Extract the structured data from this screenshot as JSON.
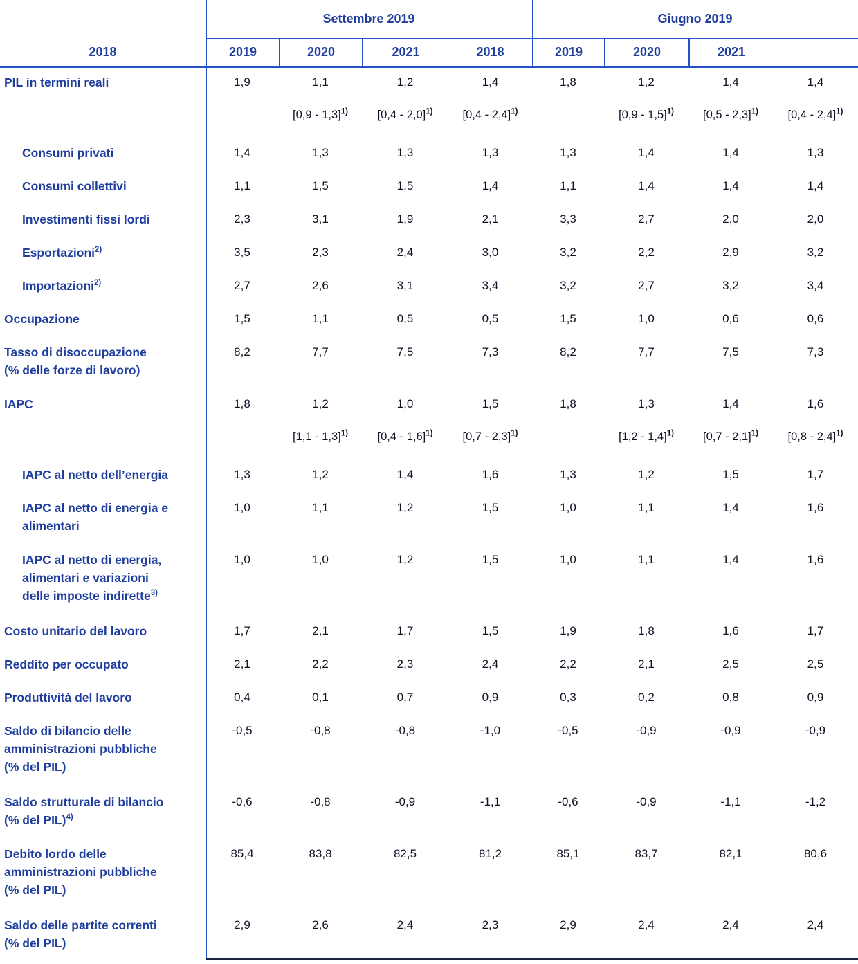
{
  "table": {
    "column_groups": [
      {
        "label": "Settembre 2019",
        "years": [
          "2018",
          "2019",
          "2020",
          "2021"
        ]
      },
      {
        "label": "Giugno 2019",
        "years": [
          "2018",
          "2019",
          "2020",
          "2021"
        ]
      }
    ],
    "range_footnote_mark": "1)",
    "rows": [
      {
        "lines": [
          {
            "text": "PIL in termini reali"
          }
        ],
        "indent": false,
        "values": [
          "1,9",
          "1,1",
          "1,2",
          "1,4",
          "1,8",
          "1,2",
          "1,4",
          "1,4"
        ],
        "ranges": [
          "",
          "[0,9 - 1,3]",
          "[0,4 - 2,0]",
          "[0,4 - 2,4]",
          "",
          "[0,9 - 1,5]",
          "[0,5 - 2,3]",
          "[0,4 - 2,4]"
        ]
      },
      {
        "lines": [
          {
            "text": "Consumi privati"
          }
        ],
        "indent": true,
        "values": [
          "1,4",
          "1,3",
          "1,3",
          "1,3",
          "1,3",
          "1,4",
          "1,4",
          "1,3"
        ]
      },
      {
        "lines": [
          {
            "text": "Consumi collettivi"
          }
        ],
        "indent": true,
        "values": [
          "1,1",
          "1,5",
          "1,5",
          "1,4",
          "1,1",
          "1,4",
          "1,4",
          "1,4"
        ]
      },
      {
        "lines": [
          {
            "text": "Investimenti fissi lordi"
          }
        ],
        "indent": true,
        "values": [
          "2,3",
          "3,1",
          "1,9",
          "2,1",
          "3,3",
          "2,7",
          "2,0",
          "2,0"
        ]
      },
      {
        "lines": [
          {
            "text": "Esportazioni",
            "sup": "2)"
          }
        ],
        "indent": true,
        "values": [
          "3,5",
          "2,3",
          "2,4",
          "3,0",
          "3,2",
          "2,2",
          "2,9",
          "3,2"
        ]
      },
      {
        "lines": [
          {
            "text": "Importazioni",
            "sup": "2)"
          }
        ],
        "indent": true,
        "values": [
          "2,7",
          "2,6",
          "3,1",
          "3,4",
          "3,2",
          "2,7",
          "3,2",
          "3,4"
        ]
      },
      {
        "lines": [
          {
            "text": "Occupazione"
          }
        ],
        "indent": false,
        "values": [
          "1,5",
          "1,1",
          "0,5",
          "0,5",
          "1,5",
          "1,0",
          "0,6",
          "0,6"
        ]
      },
      {
        "lines": [
          {
            "text": "Tasso di disoccupazione"
          },
          {
            "text": "(% delle forze di lavoro)"
          }
        ],
        "indent": false,
        "values": [
          "8,2",
          "7,7",
          "7,5",
          "7,3",
          "8,2",
          "7,7",
          "7,5",
          "7,3"
        ]
      },
      {
        "lines": [
          {
            "text": "IAPC"
          }
        ],
        "indent": false,
        "values": [
          "1,8",
          "1,2",
          "1,0",
          "1,5",
          "1,8",
          "1,3",
          "1,4",
          "1,6"
        ],
        "ranges": [
          "",
          "[1,1 - 1,3]",
          "[0,4 - 1,6]",
          "[0,7 - 2,3]",
          "",
          "[1,2 - 1,4]",
          "[0,7 - 2,1]",
          "[0,8 - 2,4]"
        ]
      },
      {
        "lines": [
          {
            "text": "IAPC al netto dell’energia"
          }
        ],
        "indent": true,
        "values": [
          "1,3",
          "1,2",
          "1,4",
          "1,6",
          "1,3",
          "1,2",
          "1,5",
          "1,7"
        ]
      },
      {
        "lines": [
          {
            "text": "IAPC al netto di energia e"
          },
          {
            "text": "alimentari"
          }
        ],
        "indent": true,
        "values": [
          "1,0",
          "1,1",
          "1,2",
          "1,5",
          "1,0",
          "1,1",
          "1,4",
          "1,6"
        ]
      },
      {
        "lines": [
          {
            "text": "IAPC al netto di energia,"
          },
          {
            "text": "alimentari e variazioni"
          },
          {
            "text": "delle imposte indirette",
            "sup": "3)"
          }
        ],
        "indent": true,
        "values": [
          "1,0",
          "1,0",
          "1,2",
          "1,5",
          "1,0",
          "1,1",
          "1,4",
          "1,6"
        ]
      },
      {
        "lines": [
          {
            "text": "Costo unitario del lavoro"
          }
        ],
        "indent": false,
        "values": [
          "1,7",
          "2,1",
          "1,7",
          "1,5",
          "1,9",
          "1,8",
          "1,6",
          "1,7"
        ]
      },
      {
        "lines": [
          {
            "text": "Reddito per occupato"
          }
        ],
        "indent": false,
        "values": [
          "2,1",
          "2,2",
          "2,3",
          "2,4",
          "2,2",
          "2,1",
          "2,5",
          "2,5"
        ]
      },
      {
        "lines": [
          {
            "text": "Produttività del lavoro"
          }
        ],
        "indent": false,
        "values": [
          "0,4",
          "0,1",
          "0,7",
          "0,9",
          "0,3",
          "0,2",
          "0,8",
          "0,9"
        ]
      },
      {
        "lines": [
          {
            "text": "Saldo di bilancio delle"
          },
          {
            "text": "amministrazioni pubbliche"
          },
          {
            "text": "(% del PIL)"
          }
        ],
        "indent": false,
        "values": [
          "-0,5",
          "-0,8",
          "-0,8",
          "-1,0",
          "-0,5",
          "-0,9",
          "-0,9",
          "-0,9"
        ]
      },
      {
        "lines": [
          {
            "text": "Saldo strutturale di bilancio"
          },
          {
            "text": "(% del PIL)",
            "sup": "4)"
          }
        ],
        "indent": false,
        "values": [
          "-0,6",
          "-0,8",
          "-0,9",
          "-1,1",
          "-0,6",
          "-0,9",
          "-1,1",
          "-1,2"
        ]
      },
      {
        "lines": [
          {
            "text": "Debito lordo delle"
          },
          {
            "text": "amministrazioni pubbliche"
          },
          {
            "text": "(% del PIL)"
          }
        ],
        "indent": false,
        "values": [
          "85,4",
          "83,8",
          "82,5",
          "81,2",
          "85,1",
          "83,7",
          "82,1",
          "80,6"
        ]
      },
      {
        "lines": [
          {
            "text": "Saldo delle partite correnti"
          },
          {
            "text": "(% del PIL)"
          }
        ],
        "indent": false,
        "values": [
          "2,9",
          "2,6",
          "2,4",
          "2,3",
          "2,9",
          "2,4",
          "2,4",
          "2,4"
        ]
      }
    ]
  },
  "colors": {
    "label_blue": "#1f3e9e",
    "border_blue": "#2153c5",
    "value_dark": "#101224",
    "bottom_rule": "#1b2142",
    "background": "#ffffff"
  }
}
